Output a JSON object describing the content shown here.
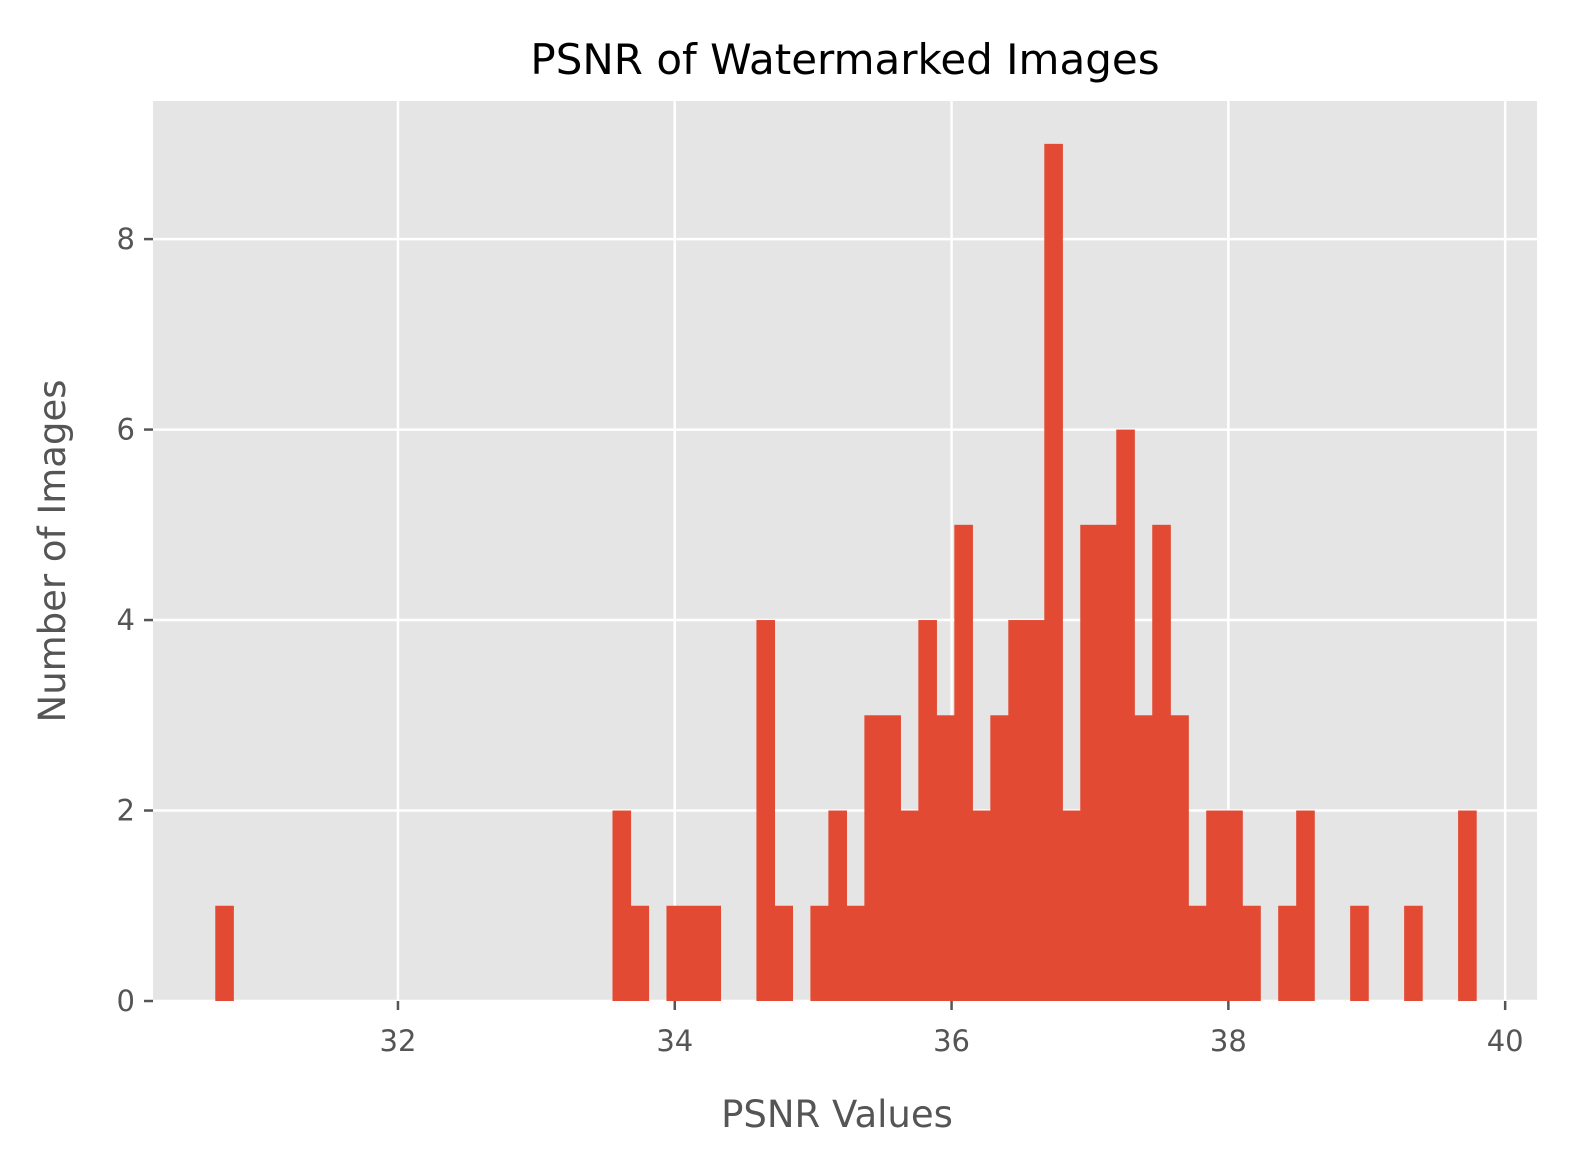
{
  "chart_data": {
    "type": "bar",
    "title": "PSNR of Watermarked Images",
    "xlabel": "PSNR Values",
    "ylabel": "Number of Images",
    "xlim": [
      30.23,
      40.23
    ],
    "ylim": [
      0,
      9.45
    ],
    "xticks": [
      32,
      34,
      36,
      38,
      40
    ],
    "yticks": [
      0,
      2,
      4,
      6,
      8
    ],
    "grid": true,
    "legend": "none",
    "colors": {
      "bar": "#E24A33",
      "background": "#E5E5E5",
      "grid": "#FFFFFF",
      "tick": "#555555"
    },
    "bin_width": 0.13,
    "bins": [
      {
        "x": 30.68,
        "count": 1
      },
      {
        "x": 33.55,
        "count": 2
      },
      {
        "x": 33.68,
        "count": 1
      },
      {
        "x": 33.94,
        "count": 1
      },
      {
        "x": 34.07,
        "count": 1
      },
      {
        "x": 34.2,
        "count": 1
      },
      {
        "x": 34.59,
        "count": 4
      },
      {
        "x": 34.72,
        "count": 1
      },
      {
        "x": 34.98,
        "count": 1
      },
      {
        "x": 35.11,
        "count": 2
      },
      {
        "x": 35.24,
        "count": 1
      },
      {
        "x": 35.37,
        "count": 3
      },
      {
        "x": 35.5,
        "count": 3
      },
      {
        "x": 35.63,
        "count": 2
      },
      {
        "x": 35.76,
        "count": 4
      },
      {
        "x": 35.89,
        "count": 3
      },
      {
        "x": 36.02,
        "count": 5
      },
      {
        "x": 36.15,
        "count": 2
      },
      {
        "x": 36.28,
        "count": 3
      },
      {
        "x": 36.41,
        "count": 4
      },
      {
        "x": 36.54,
        "count": 4
      },
      {
        "x": 36.67,
        "count": 9
      },
      {
        "x": 36.8,
        "count": 2
      },
      {
        "x": 36.93,
        "count": 5
      },
      {
        "x": 37.06,
        "count": 5
      },
      {
        "x": 37.19,
        "count": 6
      },
      {
        "x": 37.32,
        "count": 3
      },
      {
        "x": 37.45,
        "count": 5
      },
      {
        "x": 37.58,
        "count": 3
      },
      {
        "x": 37.71,
        "count": 1
      },
      {
        "x": 37.84,
        "count": 2
      },
      {
        "x": 37.97,
        "count": 2
      },
      {
        "x": 38.1,
        "count": 1
      },
      {
        "x": 38.36,
        "count": 1
      },
      {
        "x": 38.49,
        "count": 2
      },
      {
        "x": 38.88,
        "count": 1
      },
      {
        "x": 39.27,
        "count": 1
      },
      {
        "x": 39.66,
        "count": 2
      }
    ]
  }
}
